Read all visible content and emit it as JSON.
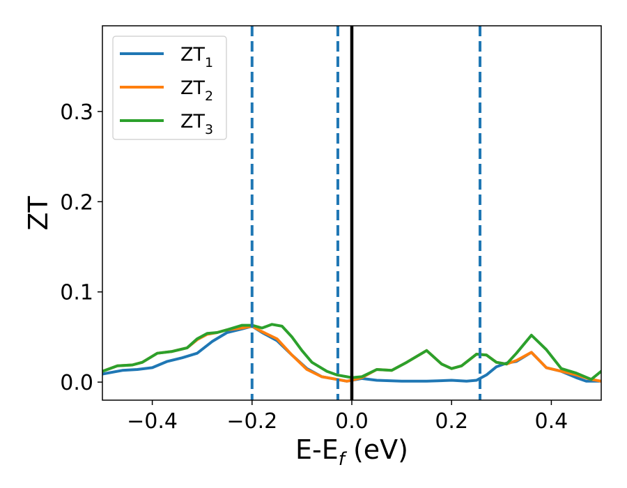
{
  "chart_data": {
    "type": "line",
    "xlabel": "E-E",
    "xlabel_sub": "f",
    "xlabel_unit": " (eV)",
    "ylabel": "ZT",
    "xlim": [
      -0.5,
      0.5
    ],
    "ylim": [
      -0.02,
      0.395
    ],
    "xticks": [
      -0.4,
      -0.2,
      0.0,
      0.2,
      0.4
    ],
    "xtick_labels": [
      "−0.4",
      "−0.2",
      "0.0",
      "0.2",
      "0.4"
    ],
    "yticks": [
      0.0,
      0.1,
      0.2,
      0.3
    ],
    "ytick_labels": [
      "0.0",
      "0.1",
      "0.2",
      "0.3"
    ],
    "grid": false,
    "legend_position": "top-left",
    "vlines": [
      {
        "x": -0.2,
        "style": "dashed",
        "color": "#1f77b4"
      },
      {
        "x": -0.028,
        "style": "dashed",
        "color": "#1f77b4"
      },
      {
        "x": 0.0,
        "style": "solid",
        "color": "#000000"
      },
      {
        "x": 0.257,
        "style": "dashed",
        "color": "#1f77b4"
      }
    ],
    "series": [
      {
        "name": "ZT",
        "name_sub": "1",
        "color": "#1f77b4",
        "x": [
          -0.5,
          -0.46,
          -0.43,
          -0.4,
          -0.37,
          -0.34,
          -0.31,
          -0.28,
          -0.25,
          -0.22,
          -0.2,
          -0.18,
          -0.15,
          -0.12,
          -0.09,
          -0.06,
          -0.03,
          -0.01,
          0.0,
          0.02,
          0.05,
          0.1,
          0.15,
          0.2,
          0.23,
          0.25,
          0.27,
          0.29,
          0.31,
          0.33,
          0.36,
          0.39,
          0.42,
          0.45,
          0.47,
          0.5
        ],
        "y": [
          0.009,
          0.013,
          0.014,
          0.016,
          0.023,
          0.027,
          0.032,
          0.045,
          0.055,
          0.059,
          0.062,
          0.055,
          0.046,
          0.03,
          0.015,
          0.006,
          0.003,
          0.001,
          0.002,
          0.004,
          0.002,
          0.001,
          0.001,
          0.002,
          0.001,
          0.002,
          0.008,
          0.017,
          0.021,
          0.023,
          0.033,
          0.016,
          0.012,
          0.005,
          0.001,
          0.001
        ]
      },
      {
        "name": "ZT",
        "name_sub": "2",
        "color": "#ff7f0e",
        "x": [
          -0.5,
          -0.47,
          -0.44,
          -0.42,
          -0.39,
          -0.36,
          -0.33,
          -0.31,
          -0.29,
          -0.27,
          -0.25,
          -0.22,
          -0.2,
          -0.18,
          -0.15,
          -0.12,
          -0.09,
          -0.06,
          -0.03,
          -0.01,
          0.0,
          0.02,
          0.05,
          0.08,
          0.11,
          0.15,
          0.18,
          0.2,
          0.22,
          0.25,
          0.27,
          0.29,
          0.31,
          0.33,
          0.36,
          0.39,
          0.42,
          0.45,
          0.48,
          0.5
        ],
        "y": [
          0.012,
          0.018,
          0.019,
          0.022,
          0.032,
          0.034,
          0.038,
          0.047,
          0.053,
          0.055,
          0.058,
          0.06,
          0.062,
          0.056,
          0.048,
          0.03,
          0.014,
          0.006,
          0.003,
          0.001,
          0.002,
          0.005,
          0.014,
          0.013,
          0.022,
          0.035,
          0.02,
          0.015,
          0.018,
          0.031,
          0.03,
          0.022,
          0.02,
          0.024,
          0.033,
          0.016,
          0.012,
          0.008,
          0.003,
          0.001
        ]
      },
      {
        "name": "ZT",
        "name_sub": "3",
        "color": "#2ca02c",
        "x": [
          -0.5,
          -0.47,
          -0.44,
          -0.42,
          -0.39,
          -0.36,
          -0.33,
          -0.31,
          -0.29,
          -0.27,
          -0.25,
          -0.22,
          -0.2,
          -0.18,
          -0.16,
          -0.14,
          -0.12,
          -0.1,
          -0.08,
          -0.05,
          -0.03,
          -0.01,
          0.0,
          0.02,
          0.05,
          0.08,
          0.11,
          0.15,
          0.18,
          0.2,
          0.22,
          0.25,
          0.27,
          0.29,
          0.31,
          0.33,
          0.36,
          0.39,
          0.42,
          0.45,
          0.48,
          0.5
        ],
        "y": [
          0.012,
          0.018,
          0.019,
          0.022,
          0.032,
          0.034,
          0.038,
          0.048,
          0.054,
          0.055,
          0.058,
          0.063,
          0.063,
          0.06,
          0.064,
          0.062,
          0.05,
          0.035,
          0.022,
          0.012,
          0.008,
          0.006,
          0.005,
          0.006,
          0.014,
          0.013,
          0.022,
          0.035,
          0.02,
          0.015,
          0.018,
          0.031,
          0.03,
          0.022,
          0.02,
          0.032,
          0.052,
          0.036,
          0.015,
          0.01,
          0.003,
          0.012
        ]
      }
    ]
  }
}
